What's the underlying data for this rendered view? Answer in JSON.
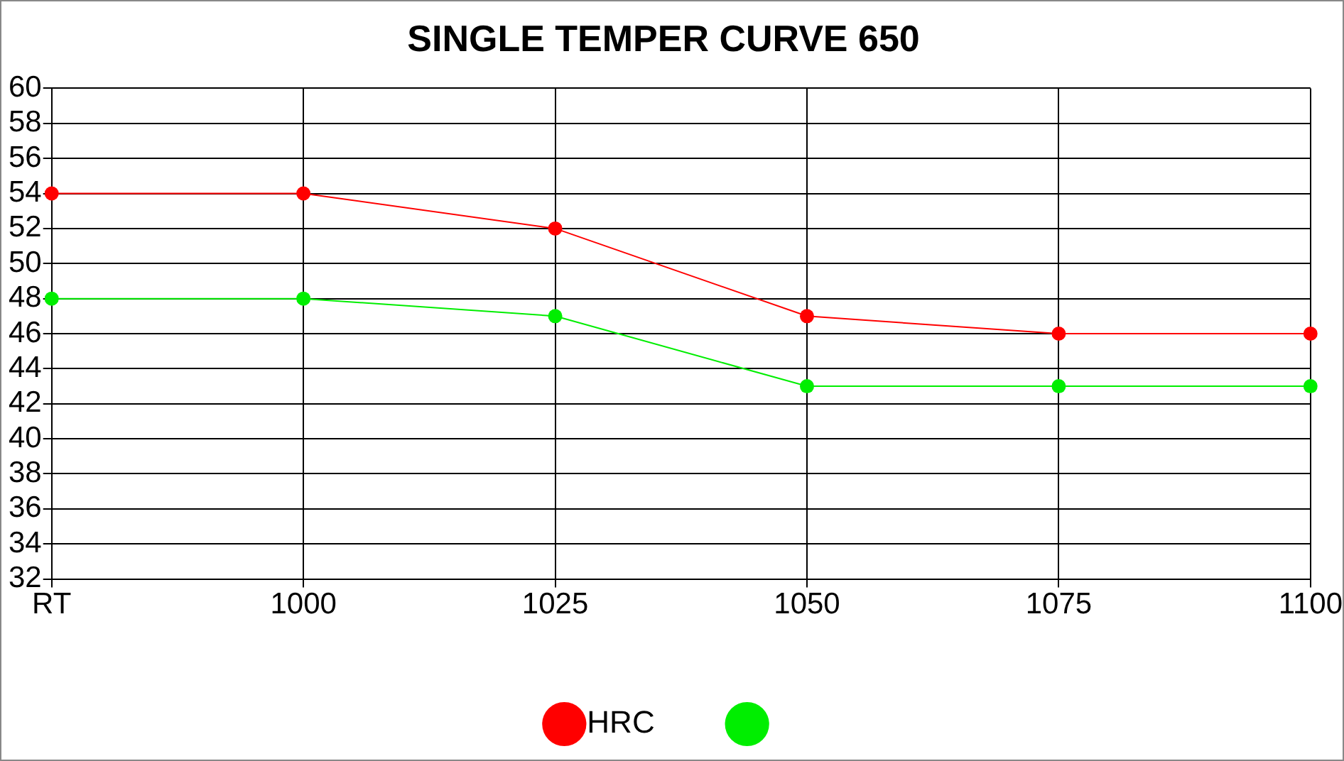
{
  "chart_data": {
    "type": "line",
    "title": "SINGLE TEMPER CURVE 650",
    "categories": [
      "RT",
      "1000",
      "1025",
      "1050",
      "1075",
      "1100"
    ],
    "series": [
      {
        "name": "HRC",
        "color": "#ff0000",
        "values": [
          54,
          54,
          52,
          47,
          46,
          46
        ]
      },
      {
        "color": "#00ee00",
        "values": [
          48,
          48,
          47,
          43,
          43,
          43
        ]
      }
    ],
    "ylim": [
      32,
      60
    ],
    "yticks": [
      32,
      34,
      36,
      38,
      40,
      42,
      44,
      46,
      48,
      50,
      52,
      54,
      56,
      58,
      60
    ],
    "grid": true,
    "legend": "bottom",
    "marker": "circle",
    "line_style": "solid"
  }
}
